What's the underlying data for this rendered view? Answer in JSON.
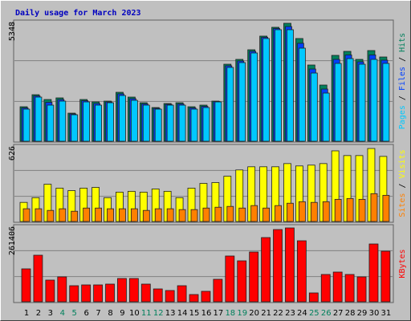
{
  "chart_data": [
    {
      "type": "bar",
      "title": "Daily usage for March 2023",
      "ylim": [
        0,
        5348
      ],
      "yticks": [
        5348
      ],
      "legend_separator": " / ",
      "series": [
        {
          "name": "Hits",
          "color": "#00805c",
          "values": [
            1564,
            2110,
            1892,
            1965,
            1273,
            1892,
            1783,
            1819,
            2219,
            2001,
            1746,
            1528,
            1710,
            1746,
            1564,
            1637,
            1819,
            3492,
            3711,
            4147,
            4766,
            5166,
            5348,
            4657,
            3456,
            2547,
            3893,
            4075,
            3711,
            4111,
            3820
          ]
        },
        {
          "name": "Files",
          "color": "#0040ff",
          "values": [
            1510,
            2055,
            1765,
            1890,
            1237,
            1837,
            1710,
            1782,
            2146,
            1928,
            1692,
            1492,
            1674,
            1692,
            1510,
            1582,
            1801,
            3420,
            3638,
            4075,
            4712,
            5112,
            5200,
            4440,
            3274,
            2365,
            3711,
            3911,
            3600,
            3911,
            3675
          ]
        },
        {
          "name": "Pages",
          "color": "#00c8ff",
          "values": [
            1455,
            2001,
            1637,
            1819,
            1201,
            1783,
            1637,
            1746,
            2074,
            1855,
            1637,
            1455,
            1637,
            1637,
            1455,
            1528,
            1783,
            3347,
            3565,
            4002,
            4657,
            5057,
            5057,
            4220,
            3092,
            2183,
            3529,
            3747,
            3492,
            3711,
            3529
          ]
        }
      ]
    },
    {
      "type": "bar",
      "ylim": [
        0,
        626
      ],
      "yticks": [
        626
      ],
      "legend_separator": " / ",
      "series": [
        {
          "name": "Visits",
          "color": "#ffff00",
          "values": [
            162,
            202,
            316,
            283,
            262,
            283,
            289,
            202,
            249,
            256,
            249,
            276,
            256,
            202,
            283,
            323,
            330,
            384,
            437,
            464,
            464,
            464,
            491,
            471,
            478,
            491,
            599,
            559,
            559,
            619,
            552
          ]
        },
        {
          "name": "Sites",
          "color": "#ff8000",
          "values": [
            108,
            108,
            94,
            108,
            87,
            114,
            114,
            108,
            108,
            108,
            94,
            108,
            108,
            101,
            101,
            114,
            121,
            128,
            114,
            135,
            114,
            135,
            155,
            168,
            162,
            168,
            188,
            195,
            188,
            236,
            222
          ]
        }
      ]
    },
    {
      "type": "bar",
      "ylim": [
        0,
        261406
      ],
      "yticks": [
        261406
      ],
      "categories": [
        "1",
        "2",
        "3",
        "4",
        "5",
        "6",
        "7",
        "8",
        "9",
        "10",
        "11",
        "12",
        "13",
        "14",
        "15",
        "16",
        "17",
        "18",
        "19",
        "20",
        "21",
        "22",
        "23",
        "24",
        "25",
        "26",
        "27",
        "28",
        "29",
        "30",
        "31"
      ],
      "weekends": [
        3,
        4,
        10,
        11,
        17,
        18,
        24,
        25
      ],
      "weekend_color": "#00805c",
      "series": [
        {
          "name": "KBytes",
          "color": "#ff0000",
          "values": [
            116481,
            164778,
            76707,
            88071,
            56820,
            59661,
            59661,
            62502,
            82389,
            82389,
            62502,
            45456,
            39774,
            56820,
            25569,
            36933,
            79548,
            161937,
            144891,
            176142,
            227280,
            255690,
            261406,
            215916,
            31251,
            96594,
            105117,
            96594,
            88071,
            204552,
            178983
          ]
        }
      ]
    }
  ]
}
